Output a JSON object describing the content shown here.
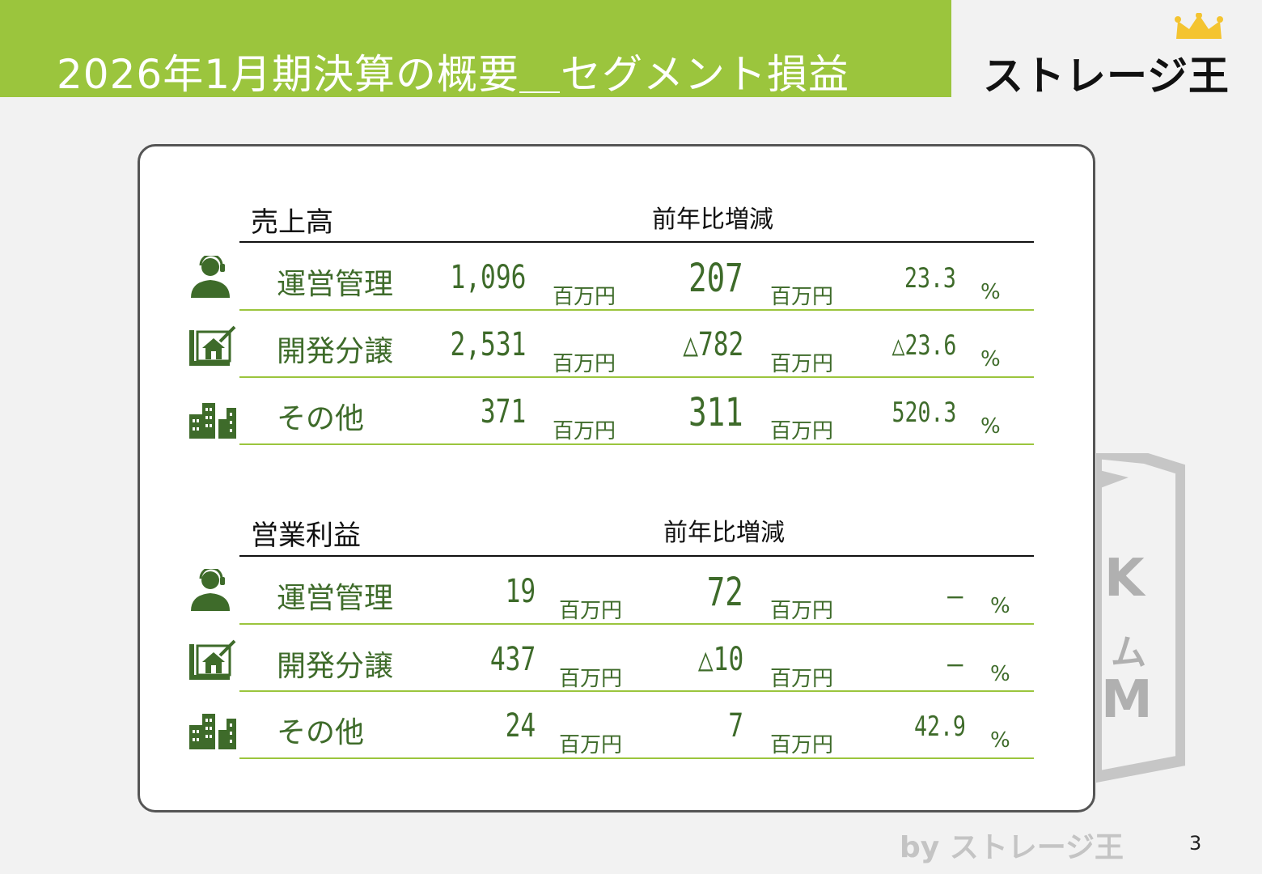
{
  "header": {
    "title": "2026年1月期決算の概要＿セグメント損益",
    "logo_text": "ストレージ王",
    "accent_color": "#9bc53d"
  },
  "watermark": {
    "letters": [
      "K",
      "ム",
      "M"
    ]
  },
  "sales": {
    "label": "売上高",
    "yoy_label": "前年比増減",
    "rows": [
      {
        "icon": "support-person-icon",
        "segment": "運営管理",
        "amount": "1,096",
        "unit": "百万円",
        "change": "207",
        "change_unit": "百万円",
        "pct": "23.3",
        "pct_unit": "%"
      },
      {
        "icon": "house-development-icon",
        "segment": "開発分譲",
        "amount": "2,531",
        "unit": "百万円",
        "change": "△782",
        "change_unit": "百万円",
        "pct": "△23.6",
        "pct_unit": "%"
      },
      {
        "icon": "buildings-icon",
        "segment": "その他",
        "amount": "371",
        "unit": "百万円",
        "change": "311",
        "change_unit": "百万円",
        "pct": "520.3",
        "pct_unit": "%"
      }
    ]
  },
  "operating_profit": {
    "label": "営業利益",
    "yoy_label": "前年比増減",
    "rows": [
      {
        "icon": "support-person-icon",
        "segment": "運営管理",
        "amount": "19",
        "unit": "百万円",
        "change": "72",
        "change_unit": "百万円",
        "pct": "－",
        "pct_unit": "%"
      },
      {
        "icon": "house-development-icon",
        "segment": "開発分譲",
        "amount": "437",
        "unit": "百万円",
        "change": "△10",
        "change_unit": "百万円",
        "pct": "－",
        "pct_unit": "%"
      },
      {
        "icon": "buildings-icon",
        "segment": "その他",
        "amount": "24",
        "unit": "百万円",
        "change": "7",
        "change_unit": "百万円",
        "pct": "42.9",
        "pct_unit": "%"
      }
    ]
  },
  "footer": {
    "by_text": "by ストレージ王",
    "page_number": "3"
  }
}
